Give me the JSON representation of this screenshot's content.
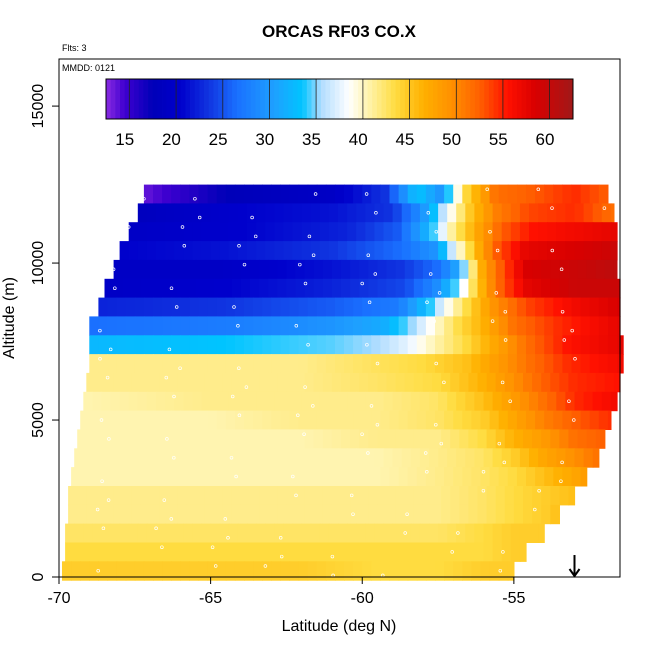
{
  "chart_data": {
    "type": "heatmap",
    "title": "ORCAS RF03 CO.X",
    "annotations": {
      "flights": "Flts: 3",
      "date": "MMDD: 0121"
    },
    "xlabel": "Latitude (deg N)",
    "ylabel": "Altitude (m)",
    "xlim": [
      -70,
      -51.5
    ],
    "ylim": [
      0,
      16500
    ],
    "x_ticks": [
      -70,
      -65,
      -60,
      -55
    ],
    "x_tick_labels": [
      "-70",
      "-65",
      "-60",
      "-55"
    ],
    "y_ticks": [
      0,
      5000,
      10000,
      15000
    ],
    "y_tick_labels": [
      "0",
      "5000",
      "10000",
      "15000"
    ],
    "colorbar": {
      "range": [
        13,
        63
      ],
      "ticks": [
        15,
        20,
        25,
        30,
        35,
        40,
        45,
        50,
        55,
        60
      ],
      "tick_labels": [
        "15",
        "20",
        "25",
        "30",
        "35",
        "40",
        "45",
        "50",
        "55",
        "60"
      ],
      "placement": "top-inside",
      "stops": [
        [
          13,
          "#8a2be2"
        ],
        [
          15,
          "#3f00d0"
        ],
        [
          18,
          "#0000b8"
        ],
        [
          21,
          "#0000cc"
        ],
        [
          24,
          "#1034e0"
        ],
        [
          27,
          "#1a70ff"
        ],
        [
          31,
          "#1ea0ff"
        ],
        [
          34,
          "#00c4ff"
        ],
        [
          36,
          "#b0dcff"
        ],
        [
          39,
          "#ffffff"
        ],
        [
          41,
          "#fff4b0"
        ],
        [
          44,
          "#ffdc40"
        ],
        [
          47,
          "#ffb000"
        ],
        [
          50,
          "#ff9000"
        ],
        [
          53,
          "#ff6000"
        ],
        [
          56,
          "#ff1000"
        ],
        [
          59,
          "#d80000"
        ],
        [
          63,
          "#a01818"
        ]
      ]
    },
    "arrow_marker": {
      "x": -53,
      "altitude_top": 700,
      "altitude_bottom": 0
    },
    "grid": false,
    "field_rows": [
      {
        "alt": 12200,
        "x0": -67.2,
        "x1": -51.9,
        "profile": [
          [
            -67.2,
            14
          ],
          [
            -64.5,
            18
          ],
          [
            -61,
            20
          ],
          [
            -59.2,
            24
          ],
          [
            -58.2,
            34
          ],
          [
            -57.4,
            30
          ],
          [
            -56.6,
            44
          ],
          [
            -55.6,
            52
          ],
          [
            -54.5,
            53
          ],
          [
            -53,
            55
          ],
          [
            -51.9,
            53
          ]
        ]
      },
      {
        "alt": 11600,
        "x0": -67.4,
        "x1": -51.7,
        "profile": [
          [
            -67.4,
            19
          ],
          [
            -64,
            21
          ],
          [
            -61,
            22
          ],
          [
            -59,
            24
          ],
          [
            -58,
            30
          ],
          [
            -57.2,
            38
          ],
          [
            -56.5,
            45
          ],
          [
            -55.6,
            51
          ],
          [
            -54.5,
            54
          ],
          [
            -53,
            55
          ],
          [
            -51.7,
            52
          ]
        ]
      },
      {
        "alt": 11000,
        "x0": -67.7,
        "x1": -51.6,
        "profile": [
          [
            -67.7,
            20
          ],
          [
            -64,
            21
          ],
          [
            -60.5,
            23
          ],
          [
            -58.8,
            26
          ],
          [
            -57.8,
            33
          ],
          [
            -57,
            42
          ],
          [
            -56.2,
            48
          ],
          [
            -55.4,
            53
          ],
          [
            -54.4,
            56
          ],
          [
            -53,
            57
          ],
          [
            -51.6,
            58
          ]
        ]
      },
      {
        "alt": 10400,
        "x0": -68.0,
        "x1": -51.6,
        "profile": [
          [
            -68,
            21
          ],
          [
            -64.5,
            22
          ],
          [
            -61,
            24
          ],
          [
            -58.7,
            27
          ],
          [
            -57.6,
            30
          ],
          [
            -56.8,
            40
          ],
          [
            -56.2,
            47
          ],
          [
            -55.6,
            53
          ],
          [
            -54.6,
            58
          ],
          [
            -53,
            59
          ],
          [
            -51.6,
            60
          ]
        ]
      },
      {
        "alt": 9800,
        "x0": -68.2,
        "x1": -51.6,
        "profile": [
          [
            -68.2,
            20
          ],
          [
            -64.5,
            20
          ],
          [
            -61,
            22
          ],
          [
            -58.7,
            24
          ],
          [
            -57.5,
            27
          ],
          [
            -56.8,
            32
          ],
          [
            -56.2,
            46
          ],
          [
            -55.6,
            52
          ],
          [
            -54.6,
            59
          ],
          [
            -53,
            60
          ],
          [
            -51.6,
            61
          ]
        ]
      },
      {
        "alt": 9200,
        "x0": -68.5,
        "x1": -51.5,
        "profile": [
          [
            -68.5,
            20
          ],
          [
            -64.5,
            21
          ],
          [
            -61,
            23
          ],
          [
            -58.6,
            25
          ],
          [
            -57.6,
            29
          ],
          [
            -57,
            34
          ],
          [
            -56.3,
            44
          ],
          [
            -55.6,
            52
          ],
          [
            -54.6,
            58
          ],
          [
            -53,
            60
          ],
          [
            -51.5,
            60
          ]
        ]
      },
      {
        "alt": 8600,
        "x0": -68.7,
        "x1": -51.5,
        "profile": [
          [
            -68.7,
            23
          ],
          [
            -64.5,
            24
          ],
          [
            -61,
            26
          ],
          [
            -58.8,
            28
          ],
          [
            -57.8,
            34
          ],
          [
            -57.1,
            40
          ],
          [
            -56.4,
            45
          ],
          [
            -55.6,
            50
          ],
          [
            -54.6,
            54
          ],
          [
            -53,
            57
          ],
          [
            -51.5,
            59
          ]
        ]
      },
      {
        "alt": 8000,
        "x0": -69.0,
        "x1": -51.5,
        "profile": [
          [
            -69,
            27
          ],
          [
            -64.5,
            28
          ],
          [
            -61,
            30
          ],
          [
            -59.3,
            32
          ],
          [
            -58.3,
            36
          ],
          [
            -57.6,
            40
          ],
          [
            -56.8,
            44
          ],
          [
            -56,
            47
          ],
          [
            -55,
            52
          ],
          [
            -53.5,
            55
          ],
          [
            -51.5,
            58
          ]
        ]
      },
      {
        "alt": 7400,
        "x0": -69.0,
        "x1": -51.4,
        "profile": [
          [
            -69,
            33
          ],
          [
            -64.5,
            34
          ],
          [
            -61,
            35
          ],
          [
            -59.5,
            36
          ],
          [
            -58.5,
            38
          ],
          [
            -57.6,
            41
          ],
          [
            -56.6,
            44
          ],
          [
            -55.6,
            48
          ],
          [
            -54.6,
            52
          ],
          [
            -53.2,
            56
          ],
          [
            -51.4,
            58
          ]
        ]
      },
      {
        "alt": 6800,
        "x0": -69.0,
        "x1": -51.4,
        "profile": [
          [
            -69,
            42
          ],
          [
            -65,
            42
          ],
          [
            -62,
            42
          ],
          [
            -60,
            43
          ],
          [
            -58,
            44
          ],
          [
            -56.5,
            46
          ],
          [
            -55.5,
            49
          ],
          [
            -54.5,
            52
          ],
          [
            -53.2,
            55
          ],
          [
            -51.4,
            57
          ]
        ]
      },
      {
        "alt": 6200,
        "x0": -69.1,
        "x1": -51.5,
        "profile": [
          [
            -69.1,
            42
          ],
          [
            -65,
            42
          ],
          [
            -62,
            42
          ],
          [
            -59.5,
            43
          ],
          [
            -57.5,
            44
          ],
          [
            -56,
            47
          ],
          [
            -55,
            50
          ],
          [
            -54,
            53
          ],
          [
            -53,
            55
          ],
          [
            -51.5,
            56
          ]
        ]
      },
      {
        "alt": 5600,
        "x0": -69.2,
        "x1": -51.6,
        "profile": [
          [
            -69.2,
            41
          ],
          [
            -65,
            42
          ],
          [
            -62,
            42
          ],
          [
            -59.5,
            42
          ],
          [
            -57.5,
            43
          ],
          [
            -56,
            46
          ],
          [
            -55,
            49
          ],
          [
            -54,
            52
          ],
          [
            -53,
            55
          ],
          [
            -51.6,
            57
          ]
        ]
      },
      {
        "alt": 5000,
        "x0": -69.3,
        "x1": -51.8,
        "profile": [
          [
            -69.3,
            41
          ],
          [
            -65,
            41
          ],
          [
            -62,
            42
          ],
          [
            -59.5,
            42
          ],
          [
            -57.5,
            43
          ],
          [
            -56,
            45
          ],
          [
            -55,
            48
          ],
          [
            -54,
            51
          ],
          [
            -53,
            53
          ],
          [
            -51.8,
            55
          ]
        ]
      },
      {
        "alt": 4400,
        "x0": -69.4,
        "x1": -52.0,
        "profile": [
          [
            -69.4,
            41
          ],
          [
            -65,
            41
          ],
          [
            -62,
            41
          ],
          [
            -59.5,
            42
          ],
          [
            -57.5,
            42
          ],
          [
            -56,
            44
          ],
          [
            -55,
            47
          ],
          [
            -54,
            49
          ],
          [
            -53,
            52
          ],
          [
            -52,
            53
          ]
        ]
      },
      {
        "alt": 3800,
        "x0": -69.5,
        "x1": -52.2,
        "profile": [
          [
            -69.5,
            41
          ],
          [
            -65,
            41
          ],
          [
            -62,
            41
          ],
          [
            -59.5,
            41
          ],
          [
            -57.5,
            42
          ],
          [
            -56,
            43
          ],
          [
            -55,
            45
          ],
          [
            -54,
            48
          ],
          [
            -53,
            50
          ],
          [
            -52.2,
            52
          ]
        ]
      },
      {
        "alt": 3200,
        "x0": -69.6,
        "x1": -52.6,
        "profile": [
          [
            -69.6,
            41
          ],
          [
            -65,
            41
          ],
          [
            -62,
            41
          ],
          [
            -59.5,
            41
          ],
          [
            -57.5,
            42
          ],
          [
            -56,
            43
          ],
          [
            -55,
            44
          ],
          [
            -54,
            46
          ],
          [
            -53,
            48
          ],
          [
            -52.6,
            49
          ]
        ]
      },
      {
        "alt": 2600,
        "x0": -69.7,
        "x1": -53.0,
        "profile": [
          [
            -69.7,
            42
          ],
          [
            -65,
            42
          ],
          [
            -62,
            42
          ],
          [
            -59.5,
            42
          ],
          [
            -57.5,
            42
          ],
          [
            -56,
            43
          ],
          [
            -55,
            44
          ],
          [
            -54,
            45
          ],
          [
            -53,
            46
          ]
        ]
      },
      {
        "alt": 2000,
        "x0": -69.7,
        "x1": -53.5,
        "profile": [
          [
            -69.7,
            42
          ],
          [
            -65,
            42
          ],
          [
            -62,
            42
          ],
          [
            -59.5,
            42
          ],
          [
            -57.5,
            42
          ],
          [
            -56,
            43
          ],
          [
            -55,
            44
          ],
          [
            -54,
            45
          ],
          [
            -53.5,
            46
          ]
        ]
      },
      {
        "alt": 1400,
        "x0": -69.8,
        "x1": -54.0,
        "profile": [
          [
            -69.8,
            43
          ],
          [
            -65,
            43
          ],
          [
            -62,
            43
          ],
          [
            -59.5,
            43
          ],
          [
            -57.5,
            43
          ],
          [
            -56,
            44
          ],
          [
            -55,
            45
          ],
          [
            -54,
            45
          ]
        ]
      },
      {
        "alt": 800,
        "x0": -69.8,
        "x1": -54.6,
        "profile": [
          [
            -69.8,
            44
          ],
          [
            -65,
            44
          ],
          [
            -62,
            44
          ],
          [
            -59.5,
            44
          ],
          [
            -57.5,
            44
          ],
          [
            -56,
            44
          ],
          [
            -55,
            45
          ],
          [
            -54.6,
            45
          ]
        ]
      },
      {
        "alt": 200,
        "x0": -69.9,
        "x1": -55.0,
        "profile": [
          [
            -69.9,
            45
          ],
          [
            -65,
            45
          ],
          [
            -62,
            45
          ],
          [
            -59.5,
            44
          ],
          [
            -57.5,
            44
          ],
          [
            -56,
            45
          ],
          [
            -55,
            45
          ]
        ]
      }
    ],
    "field_row_height": 600
  }
}
